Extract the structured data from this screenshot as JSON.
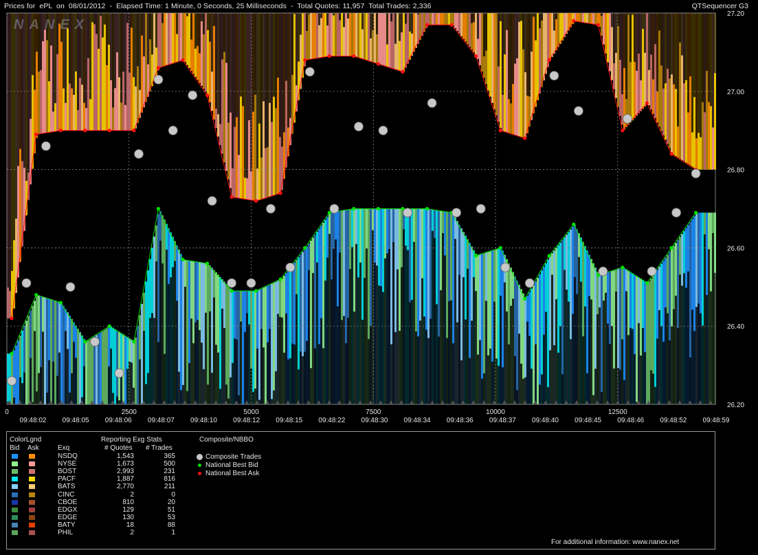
{
  "header": {
    "title": "Prices for  ePL  on  08/01/2012  -  Elapsed Time: 1 Minute, 0 Seconds, 25 Milliseconds  -  Total Quotes: 11,957  Total Trades: 2,336",
    "brand": "QTSequencer G3",
    "watermark": "NANEX"
  },
  "chart_data": {
    "type": "scatter",
    "title": "Prices for  ePL  on  08/01/2012",
    "ylim": [
      26.2,
      27.2
    ],
    "xlim": [
      0,
      14500
    ],
    "y_ticks": [
      "26.20",
      "26.40",
      "26.60",
      "26.80",
      "27.00",
      "27.20"
    ],
    "x_ticks": [
      "0",
      "2500",
      "5000",
      "7500",
      "10000",
      "12500"
    ],
    "time_labels": [
      "09:48:02",
      "09:48:05",
      "09:48:06",
      "09:48:07",
      "09:48:10",
      "09:48:12",
      "09:48:15",
      "09:48:22",
      "09:48:30",
      "09:48:34",
      "09:48:36",
      "09:48:37",
      "09:48:40",
      "09:48:45",
      "09:48:46",
      "09:48:52",
      "09:48:59"
    ],
    "grid": true,
    "series": [
      {
        "name": "Composite Trades",
        "color": "#c8c8c8",
        "x": [
          100,
          400,
          800,
          1300,
          1800,
          2300,
          2700,
          3100,
          3400,
          3800,
          4200,
          4600,
          5000,
          5400,
          5800,
          6200,
          6700,
          7200,
          7700,
          8200,
          8700,
          9200,
          9700,
          10200,
          10700,
          11200,
          11700,
          12200,
          12700,
          13200,
          13700,
          14100
        ],
        "y": [
          26.26,
          26.51,
          26.86,
          26.5,
          26.36,
          26.28,
          26.84,
          27.03,
          26.9,
          26.99,
          26.72,
          26.51,
          26.51,
          26.7,
          26.55,
          27.05,
          26.7,
          26.91,
          26.9,
          26.69,
          26.97,
          26.69,
          26.7,
          26.55,
          26.51,
          27.04,
          26.95,
          26.54,
          26.93,
          26.54,
          26.69,
          26.79
        ]
      },
      {
        "name": "National Best Bid",
        "color": "#00e000",
        "x": [
          100,
          600,
          1100,
          1600,
          2100,
          2600,
          3100,
          3600,
          4100,
          4600,
          5100,
          5600,
          6100,
          6600,
          7100,
          7600,
          8100,
          8600,
          9100,
          9600,
          10100,
          10600,
          11100,
          11600,
          12100,
          12600,
          13100,
          13600,
          14100
        ],
        "y": [
          26.33,
          26.48,
          26.46,
          26.36,
          26.4,
          26.36,
          26.7,
          26.57,
          26.56,
          26.49,
          26.49,
          26.52,
          26.6,
          26.69,
          26.7,
          26.7,
          26.7,
          26.7,
          26.69,
          26.58,
          26.6,
          26.47,
          26.58,
          26.66,
          26.53,
          26.55,
          26.51,
          26.6,
          26.69
        ]
      },
      {
        "name": "National Best Ask",
        "color": "#ff1010",
        "x": [
          100,
          600,
          1100,
          1600,
          2100,
          2600,
          3100,
          3600,
          4100,
          4600,
          5100,
          5600,
          6100,
          6600,
          7100,
          7600,
          8100,
          8600,
          9100,
          9600,
          10100,
          10600,
          11100,
          11600,
          12100,
          12600,
          13100,
          13600,
          14100
        ],
        "y": [
          26.42,
          26.89,
          26.9,
          26.9,
          26.9,
          26.9,
          27.06,
          27.08,
          26.99,
          26.73,
          26.72,
          26.74,
          27.08,
          27.09,
          27.09,
          27.07,
          27.05,
          27.17,
          27.17,
          27.09,
          26.9,
          26.88,
          27.08,
          27.18,
          27.17,
          26.9,
          26.97,
          26.84,
          26.8
        ]
      }
    ]
  },
  "legend": {
    "colorlgnd": "ColorLgnd",
    "bid": "Bid",
    "ask": "Ask",
    "exq": "Exq",
    "stats_title": "Reporting Exg Stats",
    "quotes_hdr": "# Quotes",
    "trades_hdr": "# Trades",
    "composite_title": "Composite/NBBO",
    "rows": [
      {
        "exg": "NSDQ",
        "quotes": "1,543",
        "trades": "365",
        "bid": "#1e90ff",
        "ask": "#ff8c00"
      },
      {
        "exg": "NYSE",
        "quotes": "1,673",
        "trades": "500",
        "bid": "#90ee90",
        "ask": "#ff9999"
      },
      {
        "exg": "BOST",
        "quotes": "2,993",
        "trades": "231",
        "bid": "#66bb66",
        "ask": "#cd7070"
      },
      {
        "exg": "PACF",
        "quotes": "1,887",
        "trades": "816",
        "bid": "#00e5ee",
        "ask": "#ffd700"
      },
      {
        "exg": "BATS",
        "quotes": "2,770",
        "trades": "211",
        "bid": "#87cefa",
        "ask": "#ffc878"
      },
      {
        "exg": "CINC",
        "quotes": "2",
        "trades": "0",
        "bid": "#2a6fb5",
        "ask": "#b8860b"
      },
      {
        "exg": "CBOE",
        "quotes": "810",
        "trades": "20",
        "bid": "#1838a8",
        "ask": "#a0522d"
      },
      {
        "exg": "EDGX",
        "quotes": "129",
        "trades": "51",
        "bid": "#3c8c3c",
        "ask": "#a04040"
      },
      {
        "exg": "EDGE",
        "quotes": "130",
        "trades": "53",
        "bid": "#2e8b57",
        "ask": "#8b4513"
      },
      {
        "exg": "BATY",
        "quotes": "18",
        "trades": "88",
        "bid": "#4682b4",
        "ask": "#e04000"
      },
      {
        "exg": "PHIL",
        "quotes": "2",
        "trades": "1",
        "bid": "#5aa55a",
        "ask": "#a85050"
      }
    ],
    "markers": [
      {
        "label": "Composite Trades",
        "color": "#c8c8c8"
      },
      {
        "label": "National Best Bid",
        "color": "#00e000"
      },
      {
        "label": "National Best Ask",
        "color": "#ff1010"
      }
    ]
  },
  "footer": "For additional information: www.nanex.net"
}
